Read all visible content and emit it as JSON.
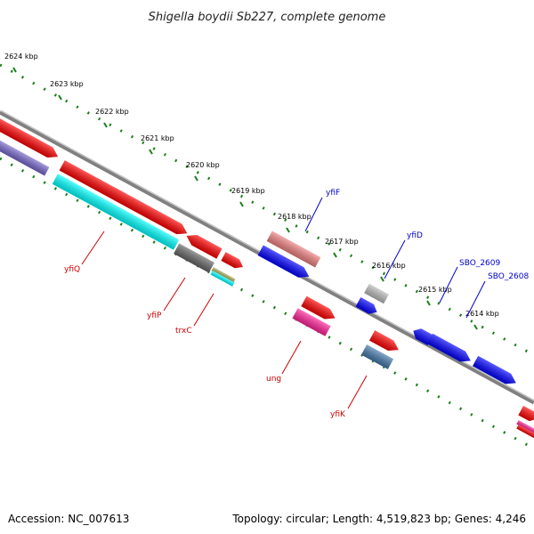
{
  "title": "Shigella boydii Sb227, complete genome",
  "footer": {
    "accession": "Accession: NC_007613",
    "topology": "Topology: circular; Length: 4,519,823 bp; Genes: 4,246"
  },
  "ticks": [
    "2624 kbp",
    "2623 kbp",
    "2622 kbp",
    "2621 kbp",
    "2620 kbp",
    "2619 kbp",
    "2618 kbp",
    "2617 kbp",
    "2616 kbp",
    "2615 kbp",
    "2614 kbp"
  ],
  "top_labels": [
    "yfiF",
    "yfiD",
    "SBO_2609",
    "SBO_2608"
  ],
  "bottom_labels": [
    "yfiQ",
    "yfiP",
    "trxC",
    "ung",
    "yfiK"
  ],
  "colors": {
    "backbone": "#808080",
    "tick_dots": "#1a7f1a",
    "red": "#ff0000",
    "blue": "#0000ff",
    "cyan": "#00ffff",
    "purple": "#7766cc",
    "pink": "#ff2299",
    "salmon": "#f08080",
    "grey": "#666666",
    "light_grey": "#bbbbbb",
    "steel": "#4477aa",
    "olive": "#aaaa55"
  }
}
